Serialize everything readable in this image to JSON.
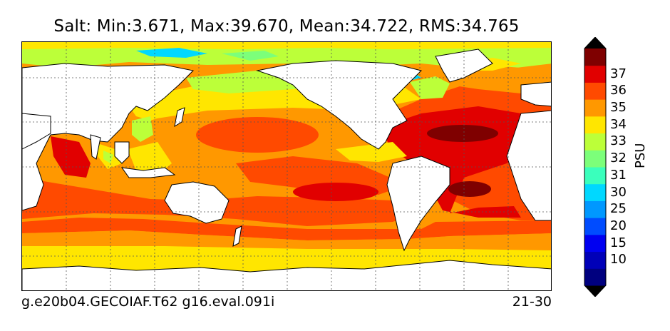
{
  "title": "Salt: Min:3.671, Max:39.670, Mean:34.722, RMS:34.765",
  "footer": {
    "case_name": "g.e20b04.GECOIAF.T62 g16.eval.091i",
    "years": "21-30"
  },
  "colorbar": {
    "label": "PSU",
    "levels": [
      {
        "label": "",
        "color": "#00007f"
      },
      {
        "label": "10",
        "color": "#0000b8"
      },
      {
        "label": "15",
        "color": "#0000f1"
      },
      {
        "label": "20",
        "color": "#004cff"
      },
      {
        "label": "25",
        "color": "#0098ff"
      },
      {
        "label": "30",
        "color": "#00d8ff"
      },
      {
        "label": "31",
        "color": "#3affbc"
      },
      {
        "label": "32",
        "color": "#7cff7a"
      },
      {
        "label": "33",
        "color": "#bcff39"
      },
      {
        "label": "34",
        "color": "#ffe600"
      },
      {
        "label": "35",
        "color": "#ff9800"
      },
      {
        "label": "36",
        "color": "#ff4a00"
      },
      {
        "label": "37",
        "color": "#e10000"
      },
      {
        "label": "",
        "color": "#7f0000"
      }
    ],
    "under_color": "#000000",
    "over_color": "#000000"
  },
  "map": {
    "land_color": "#ffffff",
    "grid": "dotted",
    "projection": "cylindrical"
  }
}
